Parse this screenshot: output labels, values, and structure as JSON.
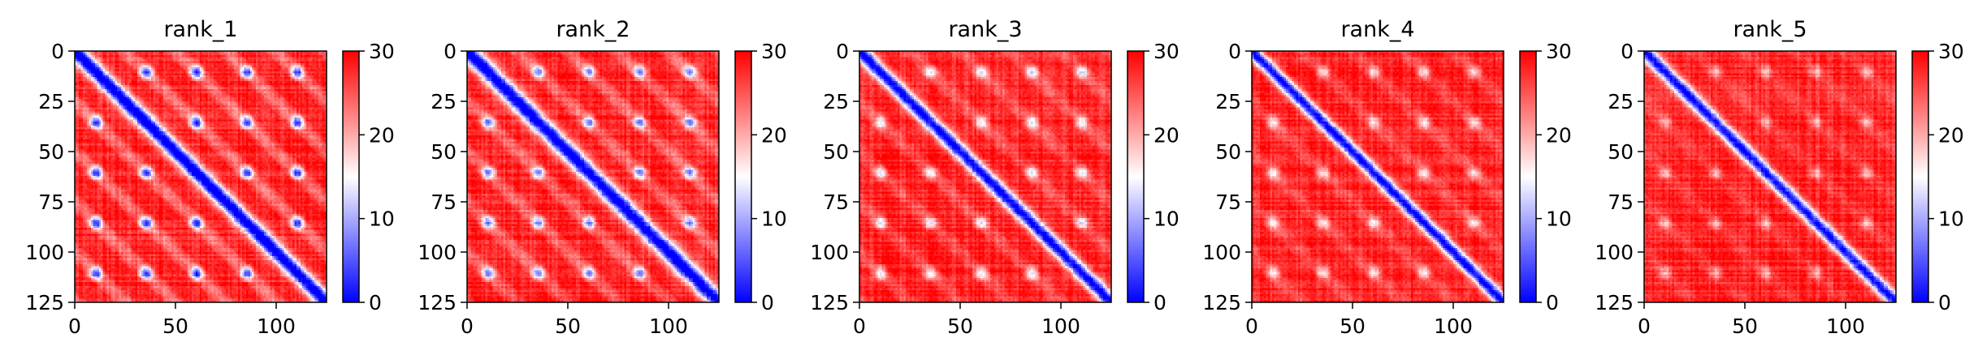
{
  "chart_data": [
    {
      "type": "heatmap",
      "title": "rank_1",
      "seed": 11,
      "diag_width": 4.2,
      "peri_strength": 1.0,
      "x_ticks": [
        0,
        50,
        100
      ],
      "y_ticks": [
        0,
        25,
        50,
        75,
        100,
        125
      ],
      "xlim": [
        0,
        125
      ],
      "ylim": [
        125,
        0
      ],
      "colorbar": {
        "ticks": [
          0,
          10,
          20,
          30
        ],
        "range": [
          0,
          30
        ],
        "colormap": "bwr"
      },
      "values_summary": "pairwise distance matrix 125x125: low (~0-5) on diagonal, periodic low patches every ~25 residues, high (~25-30) elsewhere"
    },
    {
      "type": "heatmap",
      "title": "rank_2",
      "seed": 23,
      "diag_width": 4.5,
      "peri_strength": 0.85,
      "x_ticks": [
        0,
        50,
        100
      ],
      "y_ticks": [
        0,
        25,
        50,
        75,
        100,
        125
      ],
      "xlim": [
        0,
        125
      ],
      "ylim": [
        125,
        0
      ],
      "colorbar": {
        "ticks": [
          0,
          10,
          20,
          30
        ],
        "range": [
          0,
          30
        ],
        "colormap": "bwr"
      },
      "values_summary": "pairwise distance matrix 125x125: low on diagonal with periodic low patches, high elsewhere"
    },
    {
      "type": "heatmap",
      "title": "rank_3",
      "seed": 37,
      "diag_width": 3.6,
      "peri_strength": 0.6,
      "x_ticks": [
        0,
        50,
        100
      ],
      "y_ticks": [
        0,
        25,
        50,
        75,
        100,
        125
      ],
      "xlim": [
        0,
        125
      ],
      "ylim": [
        125,
        0
      ],
      "colorbar": {
        "ticks": [
          0,
          10,
          20,
          30
        ],
        "range": [
          0,
          30
        ],
        "colormap": "bwr"
      },
      "values_summary": "pairwise distance matrix 125x125: low on diagonal, weaker periodic patches, high elsewhere"
    },
    {
      "type": "heatmap",
      "title": "rank_4",
      "seed": 41,
      "diag_width": 3.2,
      "peri_strength": 0.5,
      "x_ticks": [
        0,
        50,
        100
      ],
      "y_ticks": [
        0,
        25,
        50,
        75,
        100,
        125
      ],
      "xlim": [
        0,
        125
      ],
      "ylim": [
        125,
        0
      ],
      "colorbar": {
        "ticks": [
          0,
          10,
          20,
          30
        ],
        "range": [
          0,
          30
        ],
        "colormap": "bwr"
      },
      "values_summary": "pairwise distance matrix 125x125: narrow low diagonal, weak periodic patches, high elsewhere"
    },
    {
      "type": "heatmap",
      "title": "rank_5",
      "seed": 53,
      "diag_width": 3.4,
      "peri_strength": 0.35,
      "x_ticks": [
        0,
        50,
        100
      ],
      "y_ticks": [
        0,
        25,
        50,
        75,
        100,
        125
      ],
      "xlim": [
        0,
        125
      ],
      "ylim": [
        125,
        0
      ],
      "colorbar": {
        "ticks": [
          0,
          10,
          20,
          30
        ],
        "range": [
          0,
          30
        ],
        "colormap": "bwr"
      },
      "values_summary": "pairwise distance matrix 125x125: low diagonal, faint periodic patches, mostly high elsewhere"
    }
  ]
}
